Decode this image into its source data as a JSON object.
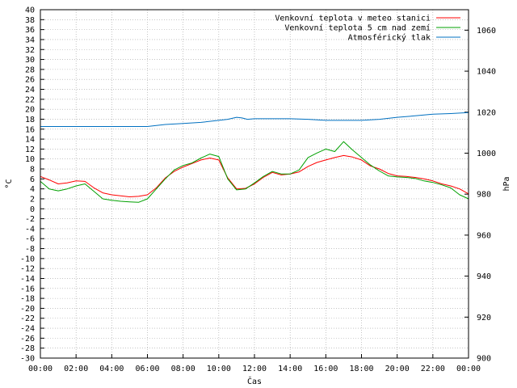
{
  "chart_data": {
    "type": "line",
    "xlabel": "Čas",
    "ylabel": "°C",
    "y2label": "hPa",
    "x_ticks": [
      "00:00",
      "02:00",
      "04:00",
      "06:00",
      "08:00",
      "10:00",
      "12:00",
      "14:00",
      "16:00",
      "18:00",
      "20:00",
      "22:00",
      "00:00"
    ],
    "x_range_hours": [
      0,
      24
    ],
    "ylim": [
      -30,
      40
    ],
    "y_step": 2,
    "y2lim": [
      900,
      1070
    ],
    "y2_ticks": [
      900,
      920,
      940,
      960,
      980,
      1000,
      1020,
      1040,
      1060
    ],
    "grid": true,
    "legend_position": "top-right",
    "series": [
      {
        "name": "Venkovní teplota v meteo stanici",
        "color": "#ff0000",
        "axis": "left",
        "x": [
          0,
          0.5,
          1,
          1.5,
          2,
          2.5,
          3,
          3.5,
          4,
          4.5,
          5,
          5.5,
          6,
          6.5,
          7,
          7.5,
          8,
          8.5,
          9,
          9.5,
          10,
          10.5,
          11,
          11.5,
          12,
          12.5,
          13,
          13.5,
          14,
          14.5,
          15,
          15.5,
          16,
          16.5,
          17,
          17.5,
          18,
          18.5,
          19,
          19.5,
          20,
          20.5,
          21,
          21.5,
          22,
          22.5,
          23,
          23.5,
          24
        ],
        "y": [
          6.5,
          5.8,
          5,
          5.2,
          5.6,
          5.5,
          4.2,
          3.2,
          2.8,
          2.6,
          2.4,
          2.5,
          2.8,
          4.2,
          6.2,
          7.5,
          8.4,
          9.1,
          9.8,
          10.2,
          9.8,
          6.2,
          4,
          4.1,
          5,
          6.3,
          7.3,
          6.8,
          7,
          7.4,
          8.5,
          9.3,
          9.8,
          10.3,
          10.7,
          10.4,
          9.8,
          8.6,
          8,
          7.1,
          6.6,
          6.5,
          6.3,
          6,
          5.6,
          5,
          4.6,
          4,
          3
        ]
      },
      {
        "name": "Venkovní teplota 5 cm nad zemí",
        "color": "#00a000",
        "axis": "left",
        "x": [
          0,
          0.5,
          1,
          1.5,
          2,
          2.5,
          3,
          3.5,
          4,
          4.5,
          5,
          5.5,
          6,
          6.5,
          7,
          7.5,
          8,
          8.5,
          9,
          9.5,
          10,
          10.5,
          11,
          11.5,
          12,
          12.5,
          13,
          13.5,
          14,
          14.5,
          15,
          15.5,
          16,
          16.5,
          17,
          17.5,
          18,
          18.5,
          19,
          19.5,
          20,
          20.5,
          21,
          21.5,
          22,
          22.5,
          23,
          23.5,
          24
        ],
        "y": [
          5.5,
          4,
          3.6,
          4,
          4.6,
          5,
          3.5,
          2,
          1.7,
          1.5,
          1.4,
          1.3,
          2,
          4,
          6,
          7.8,
          8.7,
          9.2,
          10.2,
          11,
          10.5,
          6,
          3.8,
          4,
          5.2,
          6.5,
          7.5,
          7,
          7,
          7.8,
          10.3,
          11.2,
          12,
          11.5,
          13.5,
          11.8,
          10.3,
          8.8,
          7.6,
          6.6,
          6.4,
          6.3,
          6.1,
          5.6,
          5.3,
          4.8,
          4.2,
          2.8,
          2
        ]
      },
      {
        "name": "Atmosférický tlak",
        "color": "#0070c0",
        "axis": "right",
        "x": [
          0,
          1,
          2,
          3,
          4,
          5,
          6,
          7,
          8,
          9,
          10,
          10.5,
          11,
          11.3,
          11.6,
          12,
          13,
          14,
          15,
          16,
          17,
          18,
          19,
          20,
          21,
          22,
          23,
          24
        ],
        "y": [
          1013,
          1013,
          1013,
          1013,
          1013,
          1013,
          1013,
          1014,
          1014.5,
          1015,
          1016,
          1016.5,
          1017.5,
          1017.2,
          1016.5,
          1016.8,
          1016.8,
          1016.8,
          1016.5,
          1016,
          1016,
          1016,
          1016.5,
          1017.5,
          1018.2,
          1019,
          1019.3,
          1019.8
        ]
      }
    ]
  }
}
